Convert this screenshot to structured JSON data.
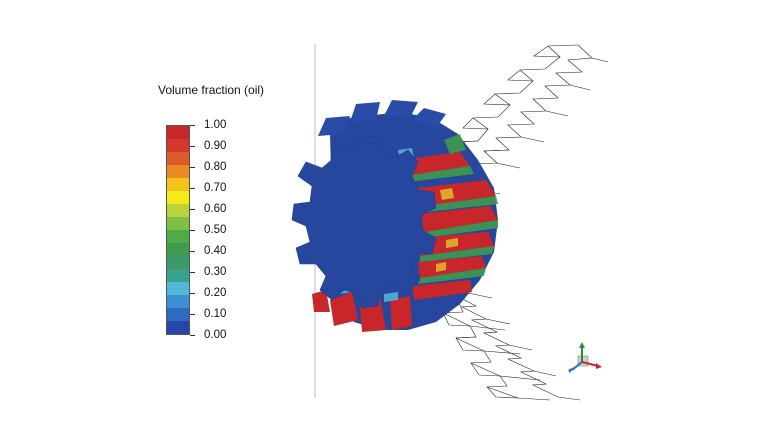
{
  "legend": {
    "title": "Volume fraction (oil)",
    "ticks": [
      "1.00",
      "0.90",
      "0.80",
      "0.70",
      "0.60",
      "0.50",
      "0.40",
      "0.30",
      "0.20",
      "0.10",
      "0.00"
    ],
    "colors_top_to_bottom": [
      "#c8262b",
      "#d4382c",
      "#dd5a2a",
      "#e98a24",
      "#f2c418",
      "#f3ea18",
      "#b9d43a",
      "#7fbf46",
      "#4faa48",
      "#3f9a4c",
      "#3c9a6a",
      "#3aa08e",
      "#53b8d8",
      "#3d8fd0",
      "#2e6ac0",
      "#2747a8"
    ]
  },
  "scene": {
    "gear_base_color": "#27479e",
    "oil_color": "#c8262b",
    "mid_color": "#3f9a4c",
    "worm_stroke": "#222222",
    "axis_line_color": "#bbbbbb"
  },
  "icons": {
    "triad": "axis-triad-icon"
  }
}
